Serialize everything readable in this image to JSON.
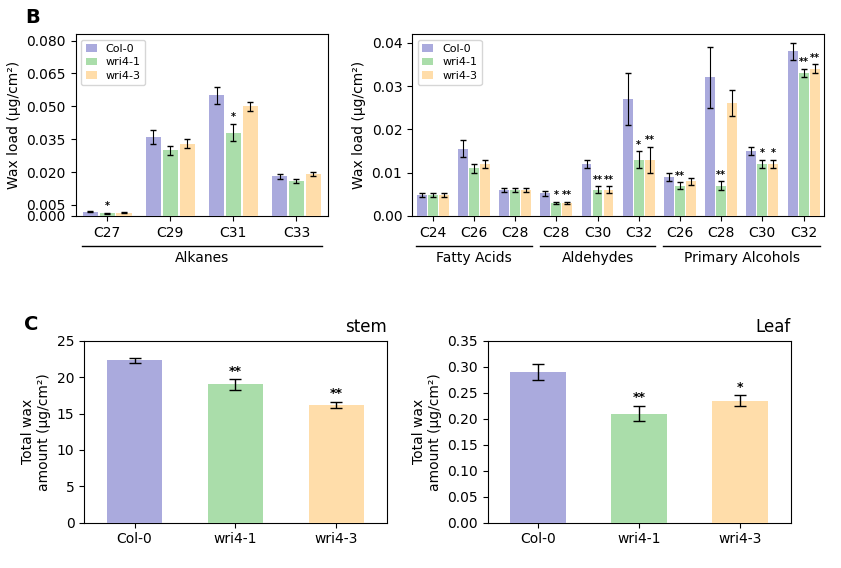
{
  "chart_data": [
    {
      "type": "bar",
      "annotations": [
        "B"
      ],
      "ylabel": "Wax load (μg/cm²)",
      "categories": [
        "C27",
        "C29",
        "C31",
        "C33"
      ],
      "category_groups": [
        "Alkanes",
        "Alkanes",
        "Alkanes",
        "Alkanes"
      ],
      "series": [
        {
          "name": "Col-0",
          "color": "#AAAADD",
          "values": [
            0.0018,
            0.036,
            0.055,
            0.018
          ],
          "errors": [
            0.0002,
            0.003,
            0.004,
            0.001
          ]
        },
        {
          "name": "wri4-1",
          "color": "#AADDAA",
          "values": [
            0.0012,
            0.03,
            0.038,
            0.016
          ],
          "errors": [
            0.0002,
            0.002,
            0.004,
            0.0008
          ],
          "annotations": [
            "*",
            null,
            "*",
            null
          ]
        },
        {
          "name": "wri4-3",
          "color": "#FFDDAA",
          "values": [
            0.0015,
            0.033,
            0.05,
            0.019
          ],
          "errors": [
            0.0001,
            0.002,
            0.002,
            0.001
          ]
        }
      ],
      "ylim": [
        0,
        0.083
      ],
      "yticks": [
        {
          "value": 0.0,
          "label": "0.000"
        },
        0.005,
        {
          "value": 0.02,
          "label": "0.020"
        },
        0.035,
        {
          "value": 0.05,
          "label": "0.050"
        },
        0.065,
        {
          "value": 0.08,
          "label": "0.080"
        }
      ],
      "legend": "upper left"
    },
    {
      "type": "bar",
      "ylabel": "Wax load (μg/cm²)",
      "categories": [
        "C24",
        "C26",
        "C28",
        "C28",
        "C30",
        "C32",
        "C26",
        "C28",
        "C30",
        "C32"
      ],
      "category_groups": [
        "Fatty Acids",
        "Fatty Acids",
        "Fatty Acids",
        "Aldehydes",
        "Aldehydes",
        "Aldehydes",
        "Primary Alcohols",
        "Primary Alcohols",
        "Primary Alcohols",
        "Primary Alcohols"
      ],
      "series": [
        {
          "name": "Col-0",
          "color": "#AAAADD",
          "values": [
            0.0048,
            0.0155,
            0.006,
            0.0052,
            0.012,
            0.027,
            0.009,
            0.032,
            0.015,
            0.038
          ],
          "errors": [
            0.0004,
            0.002,
            0.0005,
            0.0005,
            0.001,
            0.006,
            0.001,
            0.007,
            0.001,
            0.002
          ]
        },
        {
          "name": "wri4-1",
          "color": "#AADDAA",
          "values": [
            0.0048,
            0.011,
            0.006,
            0.003,
            0.006,
            0.013,
            0.007,
            0.007,
            0.012,
            0.033
          ],
          "errors": [
            0.0004,
            0.001,
            0.0005,
            0.0003,
            0.0008,
            0.002,
            0.0008,
            0.001,
            0.001,
            0.001
          ],
          "annotations": [
            null,
            null,
            null,
            "*",
            "**",
            "*",
            "**",
            "**",
            "*",
            "**"
          ]
        },
        {
          "name": "wri4-3",
          "color": "#FFDDAA",
          "values": [
            0.0048,
            0.012,
            0.006,
            0.003,
            0.006,
            0.013,
            0.008,
            0.026,
            0.012,
            0.034
          ],
          "errors": [
            0.0004,
            0.001,
            0.0005,
            0.0003,
            0.0008,
            0.003,
            0.0008,
            0.003,
            0.001,
            0.001
          ],
          "annotations": [
            null,
            null,
            null,
            "**",
            "**",
            "**",
            null,
            null,
            "*",
            "**"
          ]
        }
      ],
      "ylim": [
        0,
        0.042
      ],
      "yticks": [
        {
          "value": 0,
          "label": "0.00"
        },
        0.01,
        0.02,
        0.03,
        0.04
      ],
      "legend": "upper left"
    },
    {
      "type": "bar",
      "annotations": [
        "C"
      ],
      "title": "stem",
      "ylabel": "Total wax\namount (μg/cm²)",
      "categories": [
        "Col-0",
        "wri4-1",
        "wri4-3"
      ],
      "values": [
        22.3,
        19.0,
        16.2
      ],
      "errors": [
        0.35,
        0.75,
        0.45
      ],
      "value_annotations": [
        null,
        "**",
        "**"
      ],
      "colors": [
        "#AAAADD",
        "#AADDAA",
        "#FFDDAA"
      ],
      "ylim": [
        0,
        25
      ],
      "yticks": [
        0,
        5,
        10,
        15,
        20,
        25
      ]
    },
    {
      "type": "bar",
      "title": "Leaf",
      "ylabel": "Total wax\namount (μg/cm²)",
      "categories": [
        "Col-0",
        "wri4-1",
        "wri4-3"
      ],
      "values": [
        0.29,
        0.21,
        0.235
      ],
      "errors": [
        0.015,
        0.015,
        0.01
      ],
      "value_annotations": [
        null,
        "**",
        "*"
      ],
      "colors": [
        "#AAAADD",
        "#AADDAA",
        "#FFDDAA"
      ],
      "ylim": [
        0,
        0.35
      ],
      "yticks": [
        {
          "value": 0,
          "label": "0.00"
        },
        0.05,
        {
          "value": 0.1,
          "label": "0.10"
        },
        0.15,
        {
          "value": 0.2,
          "label": "0.20"
        },
        0.25,
        {
          "value": 0.3,
          "label": "0.30"
        },
        0.35
      ]
    }
  ]
}
